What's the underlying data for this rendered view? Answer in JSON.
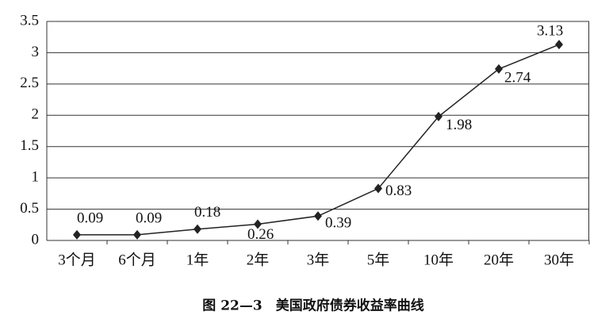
{
  "chart_data": {
    "type": "line",
    "caption": "图 22—3　美国政府债券收益率曲线",
    "categories": [
      "3个月",
      "6个月",
      "1年",
      "2年",
      "3年",
      "5年",
      "10年",
      "20年",
      "30年"
    ],
    "values": [
      0.09,
      0.09,
      0.18,
      0.26,
      0.39,
      0.83,
      1.98,
      2.74,
      3.13
    ],
    "color": "#222222",
    "ylim": [
      0,
      3.5
    ],
    "yticks": [
      0,
      0.5,
      1,
      1.5,
      2,
      2.5,
      3,
      3.5
    ],
    "grid": true
  }
}
